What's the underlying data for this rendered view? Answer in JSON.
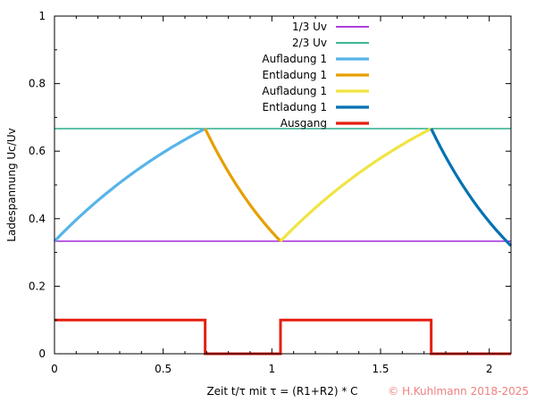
{
  "chart_data": {
    "type": "line",
    "title": "",
    "xlabel": "Zeit t/τ  mit τ = (R1+R2) * C",
    "ylabel": "Ladespannung Uc/Uv",
    "xlim": [
      0,
      2.1
    ],
    "ylim": [
      0,
      1
    ],
    "x_ticks": [
      "0",
      "0.5",
      "1",
      "1.5",
      "2"
    ],
    "y_ticks": [
      "0",
      "0.2",
      "0.4",
      "0.6",
      "0.8",
      "1"
    ],
    "legend_position": "top-right",
    "series": [
      {
        "name": "1/3 Uv",
        "color": "#9400d3",
        "kind": "hline",
        "y": 0.3333
      },
      {
        "name": "2/3 Uv",
        "color": "#009e73",
        "kind": "hline",
        "y": 0.6667
      },
      {
        "name": "Aufladung 1",
        "color": "#56b4e9",
        "kind": "charge",
        "x_start": 0,
        "x_end": 0.6931
      },
      {
        "name": "Entladung 1",
        "color": "#e69f00",
        "kind": "discharge",
        "x_start": 0.6931,
        "x_end": 1.0397
      },
      {
        "name": "Aufladung 1",
        "color": "#f0e442",
        "kind": "charge",
        "x_start": 1.0397,
        "x_end": 1.7329
      },
      {
        "name": "Entladung 1",
        "color": "#0072b2",
        "kind": "discharge",
        "x_start": 1.7329,
        "x_end": 2.1
      },
      {
        "name": "Ausgang",
        "color": "#e51e10",
        "kind": "step",
        "x": [
          0,
          0.6931,
          0.6931,
          1.0397,
          1.0397,
          1.7329,
          1.7329,
          2.1
        ],
        "y": [
          0.1,
          0.1,
          0,
          0,
          0.1,
          0.1,
          0,
          0
        ]
      }
    ]
  },
  "copyright": "© H.Kuhlmann 2018-2025"
}
